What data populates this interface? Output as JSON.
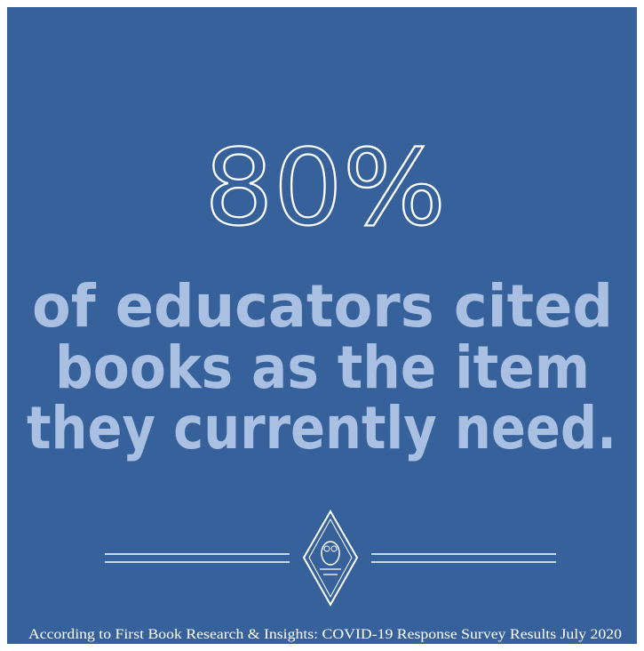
{
  "stat": {
    "value": "80%"
  },
  "statement": {
    "lines": [
      "of educators cited",
      "books as the item",
      "they currently need."
    ]
  },
  "footer": {
    "source": "According to First Book Research & Insights: COVID-19 Response Survey Results July 2020"
  }
}
